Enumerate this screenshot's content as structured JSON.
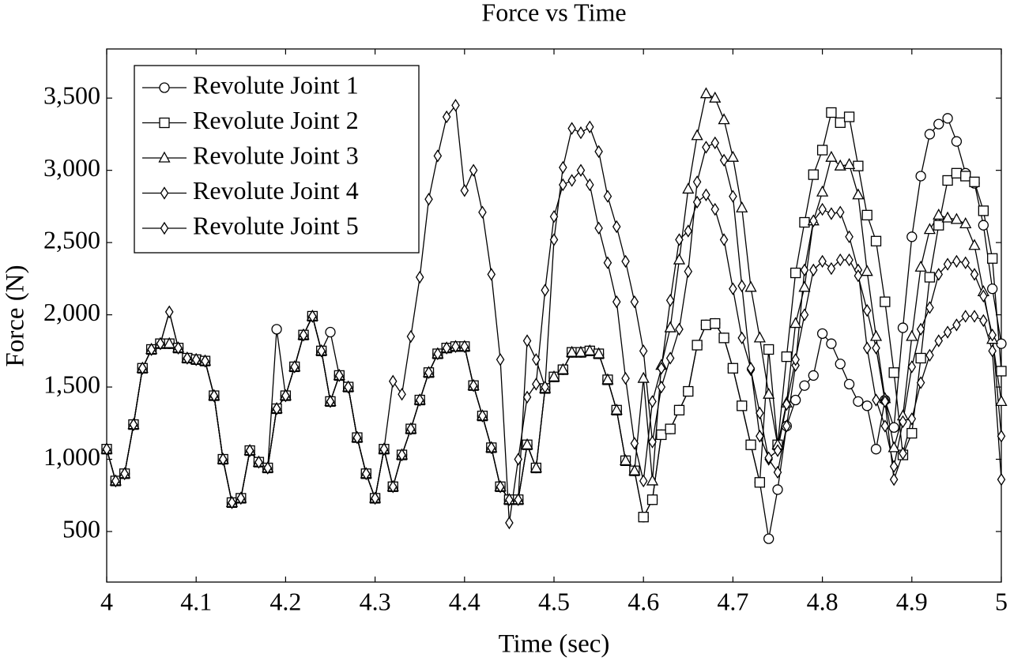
{
  "chart_data": {
    "type": "line",
    "title": "Force vs Time",
    "x_label": "Time (sec)",
    "y_label": "Force (N)",
    "xlim": [
      4,
      5
    ],
    "ylim": [
      150,
      3840
    ],
    "xticks": [
      4,
      4.1,
      4.2,
      4.3,
      4.4,
      4.5,
      4.6,
      4.7,
      4.8,
      4.9,
      5
    ],
    "yticks": [
      500,
      {
        "value": 1000,
        "label": "1,000"
      },
      {
        "value": 1500,
        "label": "1,500"
      },
      {
        "value": 2000,
        "label": "2,000"
      },
      {
        "value": 2500,
        "label": "2,500"
      },
      {
        "value": 3000,
        "label": "3,000"
      },
      {
        "value": 3500,
        "label": "3,500"
      }
    ],
    "legend": "top-left",
    "grid": false,
    "x": [
      4,
      4.01,
      4.02,
      4.03,
      4.04,
      4.05,
      4.06,
      4.07,
      4.08,
      4.09,
      4.1,
      4.11,
      4.12,
      4.13,
      4.14,
      4.15,
      4.16,
      4.17,
      4.18,
      4.19,
      4.2,
      4.21,
      4.22,
      4.23,
      4.24,
      4.25,
      4.26,
      4.27,
      4.28,
      4.29,
      4.3,
      4.31,
      4.32,
      4.33,
      4.34,
      4.35,
      4.36,
      4.37,
      4.38,
      4.39,
      4.4,
      4.41,
      4.42,
      4.43,
      4.44,
      4.45,
      4.46,
      4.47,
      4.48,
      4.49,
      4.5,
      4.51,
      4.52,
      4.53,
      4.54,
      4.55,
      4.56,
      4.57,
      4.58,
      4.59,
      4.6,
      4.61,
      4.62,
      4.63,
      4.64,
      4.65,
      4.66,
      4.67,
      4.68,
      4.69,
      4.7,
      4.71,
      4.72,
      4.73,
      4.74,
      4.75,
      4.76,
      4.77,
      4.78,
      4.79,
      4.8,
      4.81,
      4.82,
      4.83,
      4.84,
      4.85,
      4.86,
      4.87,
      4.88,
      4.89,
      4.9,
      4.91,
      4.92,
      4.93,
      4.94,
      4.95,
      4.96,
      4.97,
      4.98,
      4.99,
      5
    ],
    "series": [
      {
        "name": "Revolute Joint 1",
        "color": "#000000",
        "marker": "circle",
        "values": [
          1070,
          850,
          900,
          1240,
          1630,
          1760,
          1800,
          1800,
          1770,
          1700,
          1690,
          1680,
          1440,
          1000,
          700,
          730,
          1060,
          980,
          940,
          1900,
          1440,
          1640,
          1860,
          1990,
          1750,
          1880,
          1580,
          1500,
          1150,
          900,
          730,
          1070,
          810,
          1030,
          1210,
          1410,
          1600,
          1730,
          1770,
          1780,
          1780,
          1510,
          1300,
          1080,
          810,
          720,
          720,
          1100,
          940,
          1490,
          1570,
          1620,
          1740,
          1740,
          1750,
          1730,
          1550,
          1340,
          990,
          920,
          600,
          720,
          1170,
          1210,
          1340,
          1470,
          1790,
          1930,
          1940,
          1840,
          1630,
          1370,
          1100,
          840,
          450,
          790,
          1230,
          1410,
          1510,
          1580,
          1870,
          1800,
          1660,
          1520,
          1400,
          1370,
          1070,
          1410,
          1220,
          1910,
          2540,
          2960,
          3250,
          3320,
          3360,
          3200,
          2980,
          2910,
          2620,
          2180,
          1800
        ]
      },
      {
        "name": "Revolute Joint 2",
        "color": "#000000",
        "marker": "square",
        "values": [
          1070,
          850,
          900,
          1240,
          1630,
          1760,
          1800,
          1800,
          1770,
          1700,
          1690,
          1680,
          1440,
          1000,
          700,
          730,
          1060,
          980,
          940,
          1350,
          1440,
          1640,
          1860,
          1990,
          1750,
          1400,
          1580,
          1500,
          1150,
          900,
          730,
          1070,
          810,
          1030,
          1210,
          1410,
          1600,
          1730,
          1770,
          1780,
          1780,
          1510,
          1300,
          1080,
          810,
          720,
          720,
          1100,
          940,
          1490,
          1570,
          1620,
          1740,
          1740,
          1750,
          1730,
          1550,
          1340,
          990,
          920,
          600,
          720,
          1170,
          1210,
          1340,
          1470,
          1790,
          1930,
          1940,
          1840,
          1630,
          1370,
          1100,
          840,
          1760,
          1100,
          1710,
          2290,
          2640,
          2970,
          3140,
          3400,
          3330,
          3370,
          3030,
          2690,
          2510,
          2090,
          1600,
          1030,
          1180,
          1700,
          2260,
          2620,
          2930,
          2980,
          2960,
          2920,
          2720,
          2390,
          1610
        ]
      },
      {
        "name": "Revolute Joint 3",
        "color": "#000000",
        "marker": "triangle",
        "values": [
          1070,
          850,
          900,
          1240,
          1630,
          1760,
          1800,
          1800,
          1770,
          1700,
          1690,
          1680,
          1440,
          1000,
          700,
          730,
          1060,
          980,
          940,
          1350,
          1440,
          1640,
          1860,
          1990,
          1750,
          1400,
          1580,
          1500,
          1150,
          900,
          730,
          1070,
          810,
          1030,
          1210,
          1410,
          1600,
          1730,
          1770,
          1780,
          1780,
          1510,
          1300,
          1080,
          810,
          720,
          720,
          1100,
          940,
          1490,
          1570,
          1620,
          1740,
          1740,
          1750,
          1730,
          1550,
          1340,
          990,
          920,
          1560,
          850,
          1650,
          1910,
          2380,
          2870,
          3240,
          3530,
          3500,
          3350,
          3090,
          2740,
          2190,
          1840,
          1450,
          1100,
          1390,
          1940,
          2190,
          2650,
          2850,
          3090,
          3030,
          3040,
          2830,
          2300,
          1850,
          1420,
          1080,
          1300,
          1850,
          2330,
          2590,
          2690,
          2670,
          2660,
          2630,
          2480,
          2160,
          1830,
          1400
        ]
      },
      {
        "name": "Revolute Joint 4",
        "color": "#000000",
        "marker": "diamond",
        "values": [
          1070,
          850,
          900,
          1240,
          1630,
          1760,
          1800,
          2020,
          1770,
          1700,
          1690,
          1680,
          1440,
          1000,
          700,
          730,
          1060,
          980,
          940,
          1350,
          1440,
          1640,
          1860,
          1990,
          1750,
          1400,
          1580,
          1500,
          1150,
          900,
          730,
          1070,
          810,
          1030,
          1210,
          1410,
          1600,
          1730,
          1770,
          1780,
          1780,
          1510,
          1300,
          1080,
          810,
          720,
          720,
          1820,
          1690,
          1500,
          2520,
          3020,
          3290,
          3260,
          3300,
          3130,
          2820,
          2610,
          2370,
          2090,
          1750,
          1120,
          1500,
          1700,
          1900,
          2300,
          2920,
          3160,
          3190,
          3070,
          2820,
          2200,
          1620,
          1320,
          1000,
          910,
          1230,
          1650,
          2310,
          2650,
          2730,
          2700,
          2710,
          2540,
          2310,
          1770,
          1410,
          1230,
          950,
          1260,
          1640,
          1900,
          2050,
          2280,
          2350,
          2370,
          2360,
          2280,
          2130,
          1860,
          1160
        ]
      },
      {
        "name": "Revolute Joint 5",
        "color": "#000000",
        "marker": "diamond",
        "values": [
          1070,
          850,
          900,
          1240,
          1630,
          1760,
          1800,
          2020,
          1770,
          1700,
          1690,
          1680,
          1440,
          1000,
          700,
          730,
          1060,
          980,
          940,
          1350,
          1440,
          1640,
          1860,
          1990,
          1750,
          1400,
          1580,
          1500,
          1150,
          900,
          730,
          1070,
          1540,
          1450,
          1850,
          2260,
          2800,
          3100,
          3370,
          3450,
          2860,
          3000,
          2710,
          2280,
          1690,
          560,
          1000,
          1430,
          1520,
          2170,
          2680,
          2900,
          2930,
          3000,
          2900,
          2600,
          2360,
          2090,
          1560,
          1110,
          850,
          1400,
          1630,
          2100,
          2520,
          2580,
          2780,
          2830,
          2730,
          2520,
          2180,
          1840,
          1630,
          1160,
          1010,
          1060,
          1380,
          1690,
          2000,
          2310,
          2370,
          2320,
          2380,
          2380,
          2270,
          2030,
          1770,
          1400,
          860,
          1040,
          1280,
          1530,
          1720,
          1820,
          1880,
          1930,
          1990,
          1990,
          1960,
          1750,
          860
        ]
      }
    ]
  }
}
